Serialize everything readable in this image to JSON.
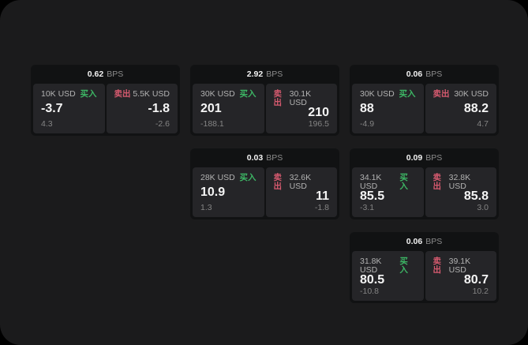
{
  "labels": {
    "bps_unit": "BPS",
    "buy": "买入",
    "sell": "卖出"
  },
  "colors": {
    "surface": "#1b1b1c",
    "card_background": "#111213",
    "panel_background": "#252528",
    "buy_green": "#3db765",
    "sell_red": "#d65a6f",
    "primary_text": "#f5f5f5",
    "secondary_text": "#b2b2b2",
    "muted_text": "#848484"
  },
  "cards": [
    {
      "bps": "0.62",
      "buy": {
        "amount": "10K USD",
        "price": "-3.7",
        "delta": "4.3"
      },
      "sell": {
        "amount": "5.5K USD",
        "price": "-1.8",
        "delta": "-2.6"
      }
    },
    {
      "bps": "2.92",
      "buy": {
        "amount": "30K USD",
        "price": "201",
        "delta": "-188.1"
      },
      "sell": {
        "amount": "30.1K USD",
        "price": "210",
        "delta": "196.5"
      }
    },
    {
      "bps": "0.06",
      "buy": {
        "amount": "30K USD",
        "price": "88",
        "delta": "-4.9"
      },
      "sell": {
        "amount": "30K USD",
        "price": "88.2",
        "delta": "4.7"
      }
    },
    {
      "bps": "0.03",
      "buy": {
        "amount": "28K USD",
        "price": "10.9",
        "delta": "1.3"
      },
      "sell": {
        "amount": "32.6K USD",
        "price": "11",
        "delta": "-1.8"
      }
    },
    {
      "bps": "0.09",
      "buy": {
        "amount": "34.1K USD",
        "price": "85.5",
        "delta": "-3.1"
      },
      "sell": {
        "amount": "32.8K USD",
        "price": "85.8",
        "delta": "3.0"
      }
    },
    {
      "bps": "0.06",
      "buy": {
        "amount": "31.8K USD",
        "price": "80.5",
        "delta": "-10.8"
      },
      "sell": {
        "amount": "39.1K USD",
        "price": "80.7",
        "delta": "10.2"
      }
    }
  ]
}
